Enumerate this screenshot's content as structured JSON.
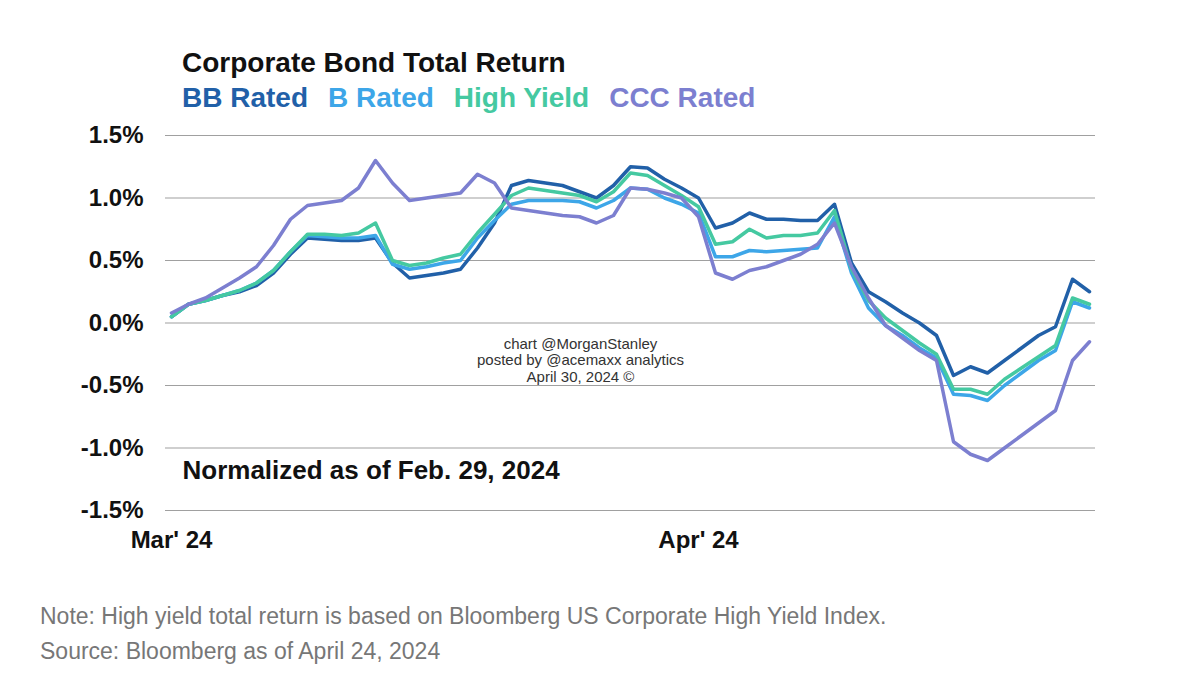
{
  "chart_data": {
    "type": "line",
    "title": "Corporate Bond Total Return",
    "annotation": "Normalized as of Feb. 29, 2024",
    "watermark": [
      "chart @MorganStanley",
      "posted by @acemaxx analytics",
      "April 30, 2024 ©"
    ],
    "notes": [
      "Note: High yield total return is based on Bloomberg US Corporate High Yield Index.",
      "Source: Bloomberg as of April 24, 2024"
    ],
    "legend": "top",
    "grid": true,
    "categories": [
      "Mar' 24",
      null,
      null,
      null,
      null,
      null,
      null,
      null,
      null,
      null,
      null,
      null,
      null,
      null,
      null,
      null,
      null,
      null,
      null,
      null,
      null,
      null,
      null,
      null,
      null,
      null,
      null,
      null,
      null,
      null,
      null,
      "Apr' 24",
      null,
      null,
      null,
      null,
      null,
      null,
      null,
      null,
      null,
      null,
      null,
      null,
      null,
      null,
      null,
      null,
      null,
      null,
      null,
      null,
      null,
      null,
      null
    ],
    "ylim": [
      -1.5,
      1.5
    ],
    "yticks": [
      {
        "value": -1.5,
        "label": "-1.5%"
      },
      {
        "value": -1.0,
        "label": "-1.0%"
      },
      {
        "value": -0.5,
        "label": "-0.5%"
      },
      {
        "value": 0.0,
        "label": "0.0%"
      },
      {
        "value": 0.5,
        "label": "0.5%"
      },
      {
        "value": 1.0,
        "label": "1.0%"
      },
      {
        "value": 1.5,
        "label": "1.5%"
      }
    ],
    "series": [
      {
        "name": "BB Rated",
        "color": "#2160a8",
        "values": [
          0.05,
          0.15,
          0.18,
          0.22,
          0.25,
          0.3,
          0.4,
          0.55,
          0.68,
          0.67,
          0.66,
          0.66,
          0.68,
          0.48,
          0.36,
          0.38,
          0.4,
          0.43,
          0.6,
          0.8,
          1.1,
          1.14,
          1.12,
          1.1,
          1.05,
          1.0,
          1.1,
          1.25,
          1.24,
          1.15,
          1.08,
          1.0,
          0.76,
          0.8,
          0.88,
          0.83,
          0.83,
          0.82,
          0.82,
          0.95,
          0.48,
          0.25,
          0.17,
          0.08,
          0.0,
          -0.1,
          -0.42,
          -0.35,
          -0.4,
          -0.3,
          -0.2,
          -0.1,
          -0.03,
          0.35,
          0.25
        ]
      },
      {
        "name": "B Rated",
        "color": "#3da6e8",
        "values": [
          0.05,
          0.15,
          0.18,
          0.22,
          0.26,
          0.32,
          0.42,
          0.57,
          0.7,
          0.69,
          0.68,
          0.68,
          0.7,
          0.47,
          0.43,
          0.45,
          0.48,
          0.5,
          0.68,
          0.82,
          0.95,
          0.98,
          0.98,
          0.98,
          0.97,
          0.92,
          0.98,
          1.08,
          1.07,
          1.0,
          0.95,
          0.88,
          0.53,
          0.53,
          0.58,
          0.57,
          0.58,
          0.59,
          0.6,
          0.85,
          0.4,
          0.12,
          -0.02,
          -0.1,
          -0.2,
          -0.28,
          -0.57,
          -0.58,
          -0.62,
          -0.5,
          -0.4,
          -0.3,
          -0.22,
          0.17,
          0.12
        ]
      },
      {
        "name": "High Yield",
        "color": "#45c9a1",
        "values": [
          0.05,
          0.15,
          0.18,
          0.22,
          0.26,
          0.32,
          0.42,
          0.57,
          0.71,
          0.71,
          0.7,
          0.72,
          0.8,
          0.5,
          0.46,
          0.48,
          0.52,
          0.55,
          0.72,
          0.87,
          1.02,
          1.08,
          1.06,
          1.04,
          1.02,
          0.97,
          1.05,
          1.2,
          1.18,
          1.1,
          1.02,
          0.93,
          0.63,
          0.65,
          0.75,
          0.68,
          0.7,
          0.7,
          0.72,
          0.9,
          0.43,
          0.18,
          0.04,
          -0.06,
          -0.16,
          -0.25,
          -0.53,
          -0.53,
          -0.57,
          -0.45,
          -0.36,
          -0.27,
          -0.18,
          0.2,
          0.15
        ]
      },
      {
        "name": "CCC Rated",
        "color": "#7c7fd0",
        "values": [
          0.08,
          0.15,
          0.2,
          0.28,
          0.36,
          0.45,
          0.62,
          0.83,
          0.94,
          0.96,
          0.98,
          1.08,
          1.3,
          1.12,
          0.98,
          1.0,
          1.02,
          1.04,
          1.19,
          1.12,
          0.92,
          0.9,
          0.88,
          0.86,
          0.85,
          0.8,
          0.86,
          1.08,
          1.07,
          1.04,
          1.0,
          0.85,
          0.4,
          0.35,
          0.42,
          0.45,
          0.5,
          0.55,
          0.63,
          0.8,
          0.45,
          0.2,
          -0.02,
          -0.12,
          -0.22,
          -0.3,
          -0.95,
          -1.05,
          -1.1,
          -1.0,
          -0.9,
          -0.8,
          -0.7,
          -0.3,
          -0.15
        ]
      }
    ]
  }
}
